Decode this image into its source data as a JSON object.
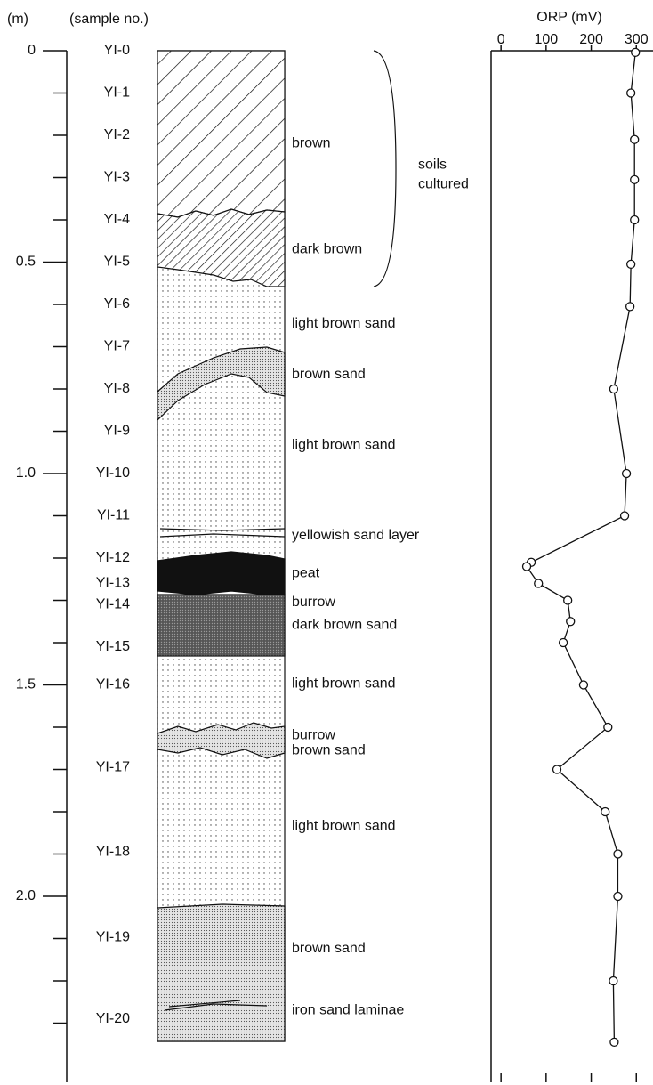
{
  "depth_axis": {
    "label": "(m)",
    "ticks": [
      0,
      0.5,
      {
        "value": 1,
        "label": "1.0"
      },
      1.5,
      {
        "value": 2,
        "label": "2.0"
      }
    ],
    "minor_ticks": [
      0.1,
      0.2,
      0.3,
      0.4,
      0.6,
      0.7,
      0.8,
      0.9,
      1.1,
      1.2,
      1.3,
      1.4,
      1.6,
      1.7,
      1.8,
      1.9,
      2.1,
      2.2,
      2.3
    ]
  },
  "samples": {
    "label": "(sample no.)",
    "items": [
      {
        "label": "YI-0",
        "depth": 0
      },
      {
        "label": "YI-1",
        "depth": 0.1
      },
      {
        "label": "YI-2",
        "depth": 0.2
      },
      {
        "label": "YI-3",
        "depth": 0.3
      },
      {
        "label": "YI-4",
        "depth": 0.4
      },
      {
        "label": "YI-5",
        "depth": 0.5
      },
      {
        "label": "YI-6",
        "depth": 0.6
      },
      {
        "label": "YI-7",
        "depth": 0.7
      },
      {
        "label": "YI-8",
        "depth": 0.8
      },
      {
        "label": "YI-9",
        "depth": 0.9
      },
      {
        "label": "YI-10",
        "depth": 1.0
      },
      {
        "label": "YI-11",
        "depth": 1.1
      },
      {
        "label": "YI-12",
        "depth": 1.2
      },
      {
        "label": "YI-13",
        "depth": 1.26
      },
      {
        "label": "YI-14",
        "depth": 1.31
      },
      {
        "label": "YI-15",
        "depth": 1.41
      },
      {
        "label": "YI-16",
        "depth": 1.5
      },
      {
        "label": "YI-17",
        "depth": 1.695
      },
      {
        "label": "YI-18",
        "depth": 1.895
      },
      {
        "label": "YI-19",
        "depth": 2.097
      },
      {
        "label": "YI-20",
        "depth": 2.29
      }
    ]
  },
  "layers": [
    {
      "label": "brown",
      "depth": 0.22
    },
    {
      "label": "dark brown",
      "depth": 0.47
    },
    {
      "label": "light brown sand",
      "depth": 0.646
    },
    {
      "label": "brown sand",
      "depth": 0.766
    },
    {
      "label": "light brown sand",
      "depth": 0.933
    },
    {
      "label": "yellowish sand layer",
      "depth": 1.147
    },
    {
      "label": "peat",
      "depth": 1.236
    },
    {
      "label": "burrow",
      "depth": 1.305
    },
    {
      "label": "dark brown sand",
      "depth": 1.358
    },
    {
      "label": "light brown sand",
      "depth": 1.497
    },
    {
      "label": "burrow",
      "depth": 1.62
    },
    {
      "label": "brown sand",
      "depth": 1.655
    },
    {
      "label": "light brown sand",
      "depth": 1.834
    },
    {
      "label": "brown sand",
      "depth": 2.124
    },
    {
      "label": "iron sand laminae",
      "depth": 2.27
    }
  ],
  "bracket_note": {
    "lines": [
      "soils",
      "cultured"
    ],
    "depth": 0.27
  },
  "chart_data": {
    "type": "line",
    "title": "ORP (mV)",
    "color": "#111111",
    "marker": "circle",
    "depth": [
      0.004,
      0.1,
      0.21,
      0.305,
      0.4,
      0.505,
      0.605,
      0.8,
      1.0,
      1.1,
      1.21,
      1.22,
      1.26,
      1.3,
      1.35,
      1.4,
      1.5,
      1.6,
      1.7,
      1.8,
      1.9,
      2.0,
      2.2,
      2.345
    ],
    "values": [
      298,
      288,
      296,
      296,
      296,
      288,
      286,
      250,
      278,
      274,
      67,
      57,
      83,
      148,
      154,
      138,
      183,
      237,
      124,
      231,
      259,
      259,
      249,
      251
    ],
    "xlim": [
      -22,
      337
    ],
    "xticks": [
      0,
      100,
      200,
      300
    ],
    "ylim": [
      0,
      2.44
    ]
  }
}
